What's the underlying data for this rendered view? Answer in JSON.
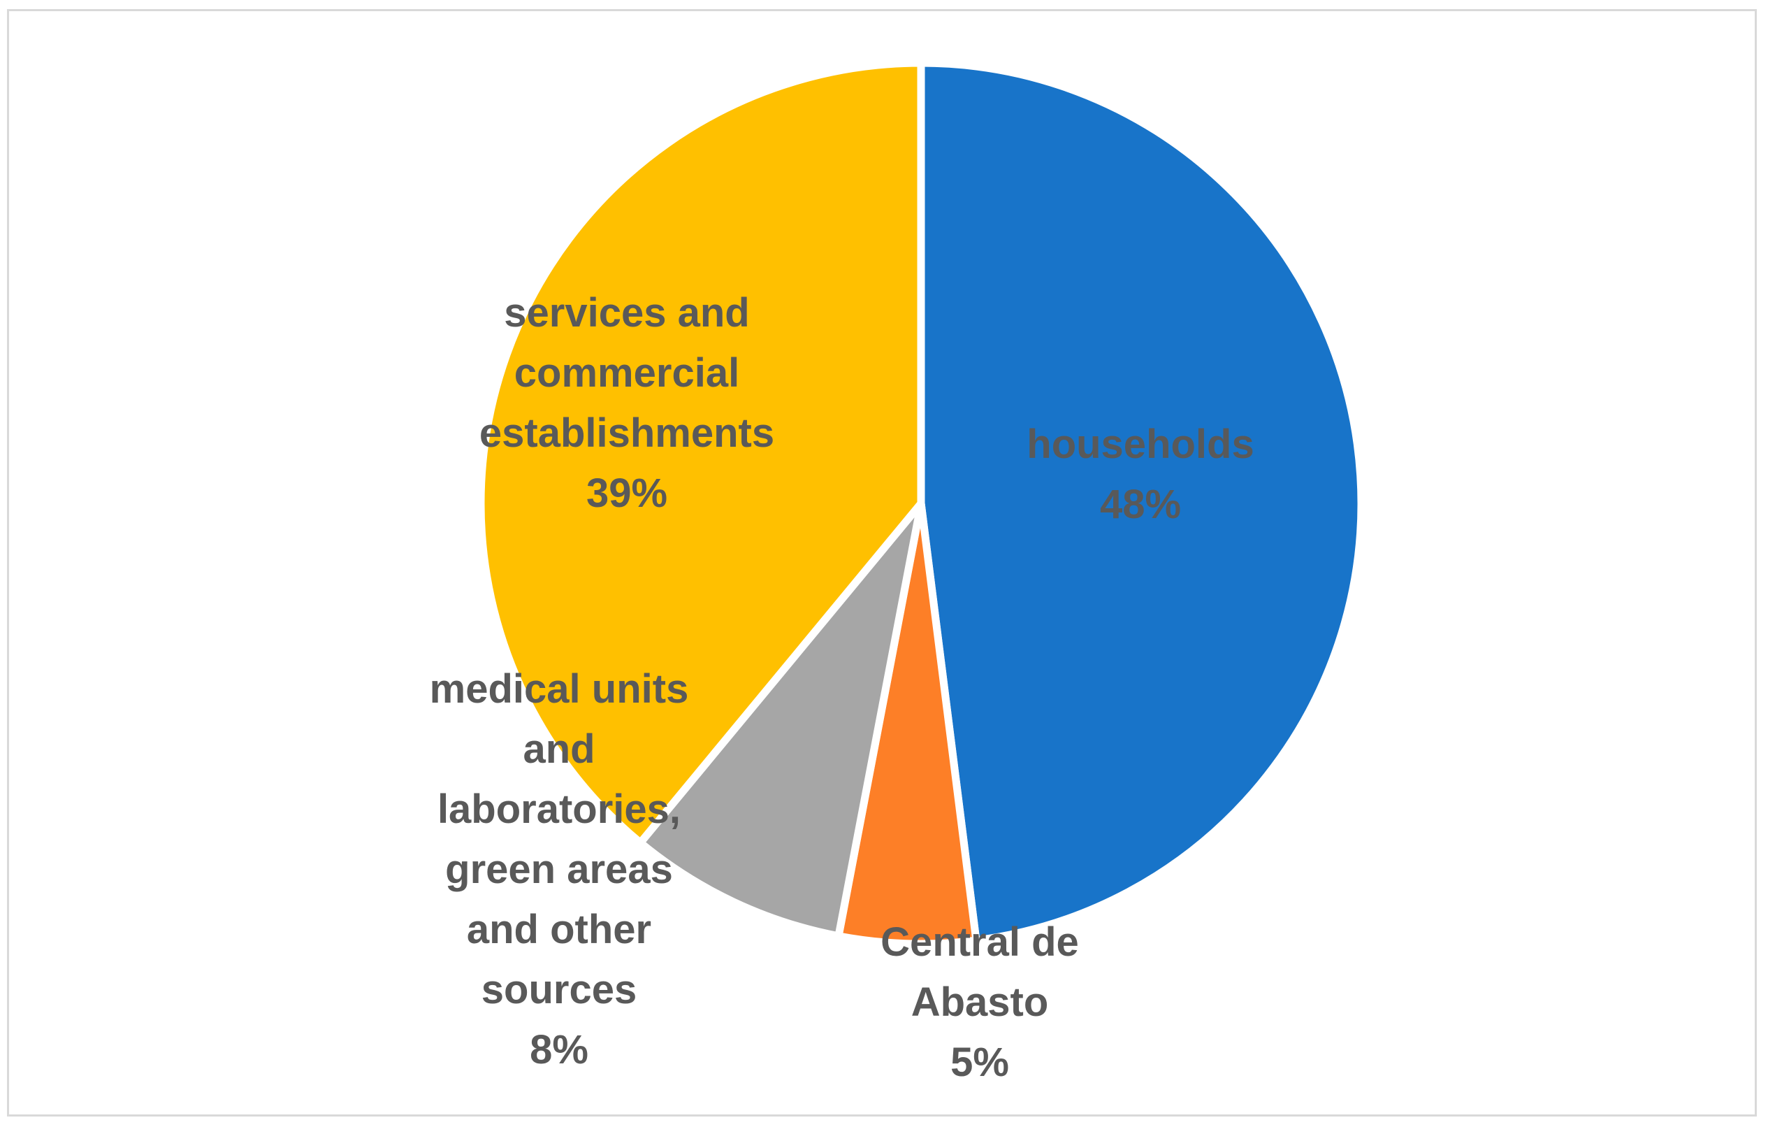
{
  "chart_data": {
    "type": "pie",
    "title": "",
    "start_angle_deg": 0,
    "direction": "clockwise",
    "slices": [
      {
        "key": "households",
        "label_lines": [
          "households"
        ],
        "percent_label": "48%",
        "value": 48,
        "color": "#1874c9"
      },
      {
        "key": "central-de-abasto",
        "label_lines": [
          "Central de",
          "Abasto"
        ],
        "percent_label": "5%",
        "value": 5,
        "color": "#fd7f27"
      },
      {
        "key": "medical-units-green-areas-other",
        "label_lines": [
          "medical units",
          "and",
          "laboratories,",
          "green areas",
          "and other",
          "sources"
        ],
        "percent_label": "8%",
        "value": 8,
        "color": "#a6a6a6"
      },
      {
        "key": "services-commercial",
        "label_lines": [
          "services and",
          "commercial",
          "establishments"
        ],
        "percent_label": "39%",
        "value": 39,
        "color": "#ffc000"
      }
    ],
    "data_label_color": "#595959",
    "legend": "none"
  }
}
